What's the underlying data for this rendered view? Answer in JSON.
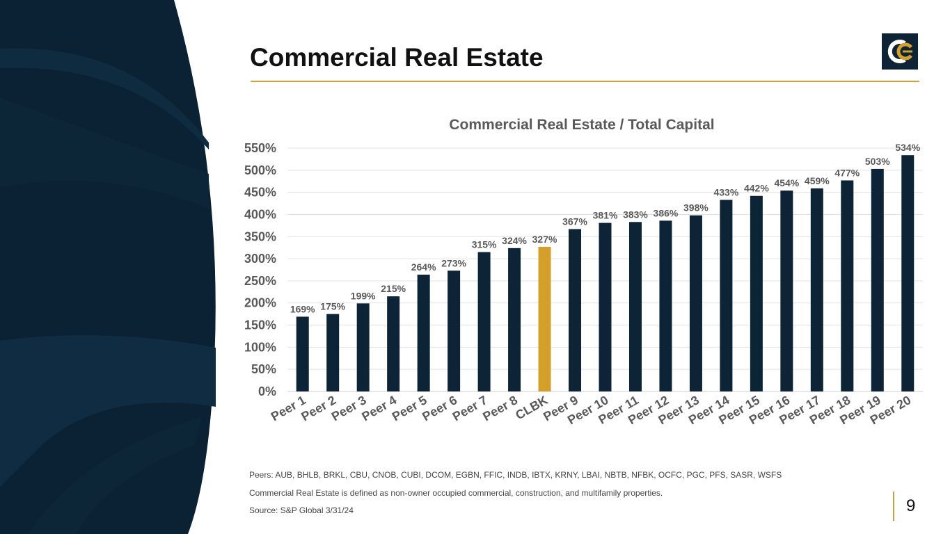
{
  "slide": {
    "title": "Commercial Real Estate",
    "page_number": "9",
    "notes": [
      "Peers: AUB, BHLB, BRKL, CBU, CNOB, CUBI, DCOM, EGBN, FFIC, INDB, IBTX, KRNY, LBAI, NBTB, NFBK, OCFC, PGC, PFS, SASR, WSFS",
      "Commercial Real Estate is defined as non-owner occupied commercial, construction, and multifamily properties.",
      "Source: S&P Global 3/31/24"
    ]
  },
  "colors": {
    "navy": "#0d2436",
    "highlight": "#d4a02a",
    "accent_rule": "#c9a23d",
    "axis_text": "#595959",
    "gridline": "#e3e3e3"
  },
  "logo": {
    "icon": "cc-monogram-logo"
  },
  "chart_data": {
    "type": "bar",
    "title": "Commercial Real Estate / Total Capital",
    "categories": [
      "Peer 1",
      "Peer 2",
      "Peer 3",
      "Peer 4",
      "Peer 5",
      "Peer 6",
      "Peer 7",
      "Peer 8",
      "CLBK",
      "Peer 9",
      "Peer 10",
      "Peer 11",
      "Peer 12",
      "Peer 13",
      "Peer 14",
      "Peer 15",
      "Peer 16",
      "Peer 17",
      "Peer 18",
      "Peer 19",
      "Peer 20"
    ],
    "values": [
      169,
      175,
      199,
      215,
      264,
      273,
      315,
      324,
      327,
      367,
      381,
      383,
      386,
      398,
      433,
      442,
      454,
      459,
      477,
      503,
      534
    ],
    "data_labels": [
      "169%",
      "175%",
      "199%",
      "215%",
      "264%",
      "273%",
      "315%",
      "324%",
      "327%",
      "367%",
      "381%",
      "383%",
      "386%",
      "398%",
      "433%",
      "442%",
      "454%",
      "459%",
      "477%",
      "503%",
      "534%"
    ],
    "highlight_category": "CLBK",
    "ylim": [
      0,
      550
    ],
    "yticks": [
      "0%",
      "50%",
      "100%",
      "150%",
      "200%",
      "250%",
      "300%",
      "350%",
      "400%",
      "450%",
      "500%",
      "550%"
    ],
    "grid": true,
    "legend": "none",
    "xlabel": "",
    "ylabel": ""
  }
}
